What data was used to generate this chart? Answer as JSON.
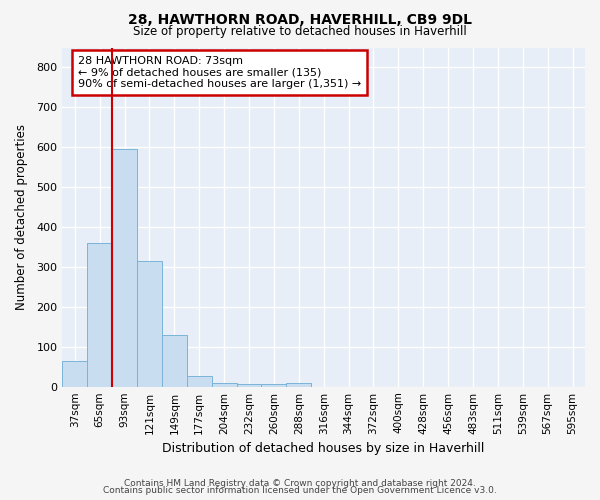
{
  "title1": "28, HAWTHORN ROAD, HAVERHILL, CB9 9DL",
  "title2": "Size of property relative to detached houses in Haverhill",
  "xlabel": "Distribution of detached houses by size in Haverhill",
  "ylabel": "Number of detached properties",
  "footer1": "Contains HM Land Registry data © Crown copyright and database right 2024.",
  "footer2": "Contains public sector information licensed under the Open Government Licence v3.0.",
  "annotation_line1": "28 HAWTHORN ROAD: 73sqm",
  "annotation_line2": "← 9% of detached houses are smaller (135)",
  "annotation_line3": "90% of semi-detached houses are larger (1,351) →",
  "bar_color": "#c9ddf0",
  "bar_edge_color": "#7ab4d8",
  "vline_color": "#cc0000",
  "categories": [
    "37sqm",
    "65sqm",
    "93sqm",
    "121sqm",
    "149sqm",
    "177sqm",
    "204sqm",
    "232sqm",
    "260sqm",
    "288sqm",
    "316sqm",
    "344sqm",
    "372sqm",
    "400sqm",
    "428sqm",
    "456sqm",
    "483sqm",
    "511sqm",
    "539sqm",
    "567sqm",
    "595sqm"
  ],
  "values": [
    65,
    360,
    595,
    315,
    130,
    27,
    10,
    7,
    7,
    9,
    0,
    0,
    0,
    0,
    0,
    0,
    0,
    0,
    0,
    0,
    0
  ],
  "ylim": [
    0,
    850
  ],
  "yticks": [
    0,
    100,
    200,
    300,
    400,
    500,
    600,
    700,
    800
  ],
  "background_color": "#e8eef7",
  "fig_background_color": "#f5f5f5",
  "grid_color": "#ffffff",
  "vline_bin_index": 1
}
